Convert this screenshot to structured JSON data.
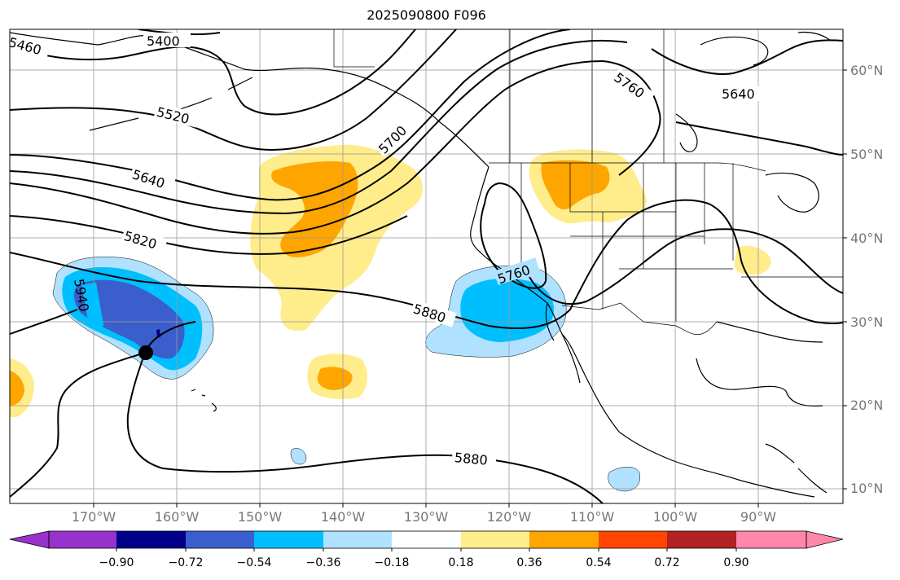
{
  "title": "2025090800 F096",
  "lat_labels": [
    "60°N",
    "50°N",
    "40°N",
    "30°N",
    "20°N",
    "10°N"
  ],
  "lon_labels": [
    "170°W",
    "160°W",
    "150°W",
    "140°W",
    "130°W",
    "120°W",
    "110°W",
    "100°W",
    "90°W"
  ],
  "contour_labels": [
    "5400",
    "5460",
    "5520",
    "5640",
    "5700",
    "5820",
    "5940",
    "5880",
    "5760",
    "5760",
    "5640",
    "5880"
  ],
  "colorbar": {
    "ticks": [
      "−0.90",
      "−0.72",
      "−0.54",
      "−0.36",
      "−0.18",
      "0.18",
      "0.36",
      "0.54",
      "0.72",
      "0.90"
    ],
    "colors": [
      "#9932cc",
      "#00008b",
      "#3a5fcd",
      "#00bfff",
      "#b0e2ff",
      "#ffffff",
      "#ffec8b",
      "#ffa500",
      "#ff4500",
      "#b22222",
      "#ff88aa"
    ]
  },
  "marker": {
    "label": "",
    "color": "#000000"
  }
}
